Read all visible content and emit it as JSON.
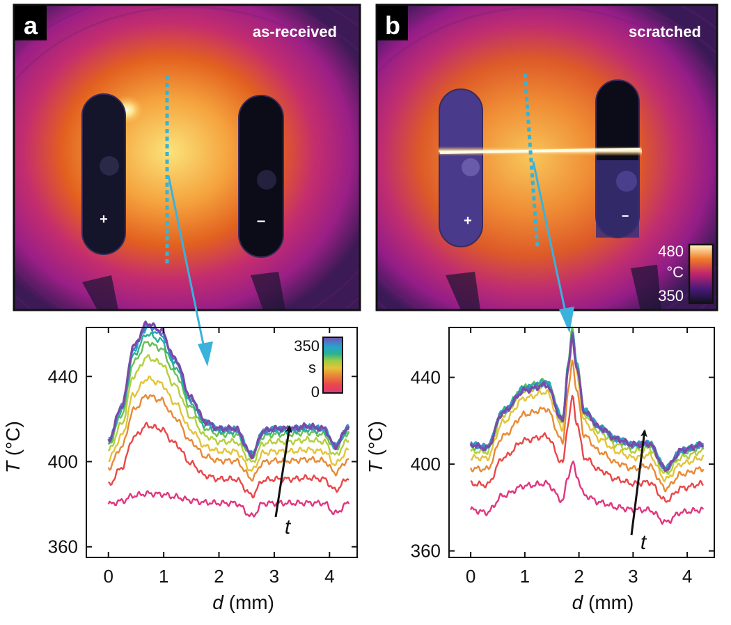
{
  "panels": [
    {
      "letter": "a",
      "title": "as-received",
      "plus": "+",
      "minus": "−"
    },
    {
      "letter": "b",
      "title": "scratched",
      "plus": "+",
      "minus": "−"
    }
  ],
  "thermal_colorbar": {
    "max_label": "480",
    "unit": "°C",
    "min_label": "350"
  },
  "time_colorbar": {
    "max_label": "350",
    "unit": "s",
    "min_label": "0"
  },
  "time_arrow_label": "t",
  "colors": {
    "probe_line": "#36b3d6",
    "arrow": "#3ab2dc"
  },
  "chart_data": [
    {
      "type": "line",
      "panel": "a",
      "xlabel_italic": "d",
      "xlabel_rest": " (mm)",
      "ylabel_italic": "T",
      "ylabel_rest": " (°C)",
      "xlim": [
        -0.4,
        4.5
      ],
      "ylim": [
        355,
        463
      ],
      "xticks": [
        0,
        1,
        2,
        3,
        4
      ],
      "yticks": [
        360,
        400,
        440
      ],
      "series_profile": {
        "d": [
          0,
          0.25,
          0.45,
          0.7,
          0.95,
          1.2,
          1.5,
          1.75,
          2.0,
          2.3,
          2.6,
          2.8,
          3.0,
          3.3,
          3.6,
          3.9,
          4.1,
          4.35
        ],
        "rise": [
          0,
          0.3,
          0.8,
          1.0,
          0.94,
          0.7,
          0.36,
          0.16,
          0.1,
          0.1,
          0.06,
          0.08,
          0.1,
          0.1,
          0.12,
          0.1,
          0.1,
          0.12
        ],
        "dips": [
          0,
          0,
          0,
          0,
          0,
          0,
          0,
          0,
          0,
          0,
          -10,
          0,
          0,
          0,
          0,
          0,
          -8,
          0
        ]
      },
      "series": [
        {
          "name": "t1",
          "color": "#e0367e",
          "base": 380,
          "peak": 5
        },
        {
          "name": "t2",
          "color": "#e8474a",
          "base": 389,
          "peak": 28
        },
        {
          "name": "t3",
          "color": "#e88a36",
          "base": 397,
          "peak": 34
        },
        {
          "name": "t4",
          "color": "#e3c43a",
          "base": 401,
          "peak": 38
        },
        {
          "name": "t5",
          "color": "#b5cf3c",
          "base": 405,
          "peak": 44
        },
        {
          "name": "t6",
          "color": "#6cbf55",
          "base": 408,
          "peak": 48
        },
        {
          "name": "t7",
          "color": "#2ab38e",
          "base": 409,
          "peak": 51
        },
        {
          "name": "t8",
          "color": "#27a4c8",
          "base": 410,
          "peak": 53
        },
        {
          "name": "t9",
          "color": "#4c79c6",
          "base": 410,
          "peak": 54
        },
        {
          "name": "t10",
          "color": "#7a4aa8",
          "base": 410,
          "peak": 55
        }
      ]
    },
    {
      "type": "line",
      "panel": "b",
      "xlabel_italic": "d",
      "xlabel_rest": " (mm)",
      "ylabel_italic": "T",
      "ylabel_rest": " (°C)",
      "xlim": [
        -0.4,
        4.5
      ],
      "ylim": [
        357,
        463
      ],
      "xticks": [
        0,
        1,
        2,
        3,
        4
      ],
      "yticks": [
        360,
        400,
        440
      ],
      "series_profile": {
        "d": [
          0,
          0.3,
          0.6,
          1.0,
          1.4,
          1.7,
          1.8,
          1.88,
          1.96,
          2.1,
          2.4,
          2.7,
          3.0,
          3.3,
          3.6,
          3.9,
          4.3
        ],
        "rise": [
          0,
          0.05,
          0.3,
          0.5,
          0.55,
          0.3,
          0.7,
          1.0,
          0.7,
          0.3,
          0.15,
          0.05,
          0.0,
          0.05,
          -0.1,
          -0.05,
          0.0
        ],
        "dips": [
          0,
          -4,
          0,
          0,
          0,
          -4,
          0,
          0,
          0,
          0,
          0,
          0,
          0,
          -2,
          -6,
          0,
          0
        ]
      },
      "series": [
        {
          "name": "t1",
          "color": "#e0367e",
          "base": 379,
          "peak": 22
        },
        {
          "name": "t2",
          "color": "#e8474a",
          "base": 391,
          "peak": 40
        },
        {
          "name": "t3",
          "color": "#e88a36",
          "base": 398,
          "peak": 50
        },
        {
          "name": "t4",
          "color": "#e3c43a",
          "base": 403,
          "peak": 55
        },
        {
          "name": "t5",
          "color": "#b5cf3c",
          "base": 406,
          "peak": 56
        },
        {
          "name": "t6",
          "color": "#6cbf55",
          "base": 408,
          "peak": 55
        },
        {
          "name": "t7",
          "color": "#2ab38e",
          "base": 409,
          "peak": 53
        },
        {
          "name": "t8",
          "color": "#27a4c8",
          "base": 409,
          "peak": 52
        },
        {
          "name": "t9",
          "color": "#4c79c6",
          "base": 409,
          "peak": 51
        },
        {
          "name": "t10",
          "color": "#7a4aa8",
          "base": 409,
          "peak": 50
        }
      ]
    }
  ]
}
